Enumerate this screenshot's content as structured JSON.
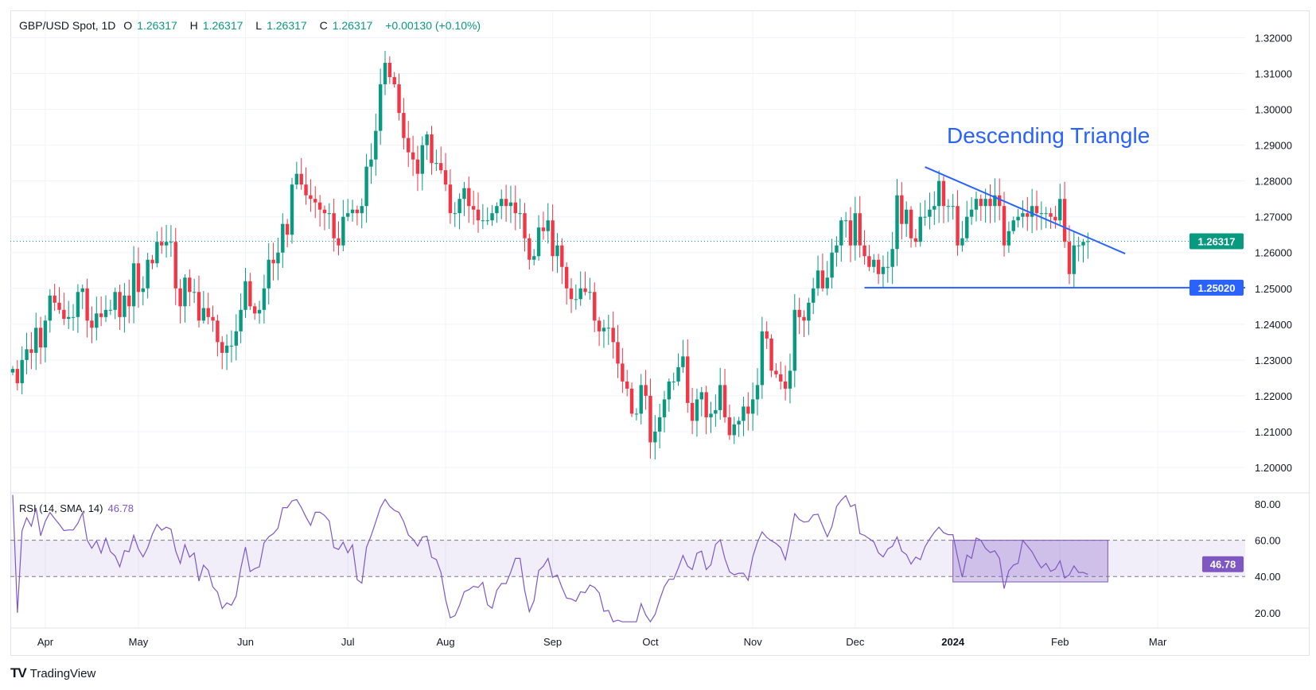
{
  "header": {
    "symbol": "GBP/USD Spot, 1D",
    "open_label": "O",
    "open": "1.26317",
    "high_label": "H",
    "high": "1.26317",
    "low_label": "L",
    "low": "1.26317",
    "close_label": "C",
    "close": "1.26317",
    "change": "+0.00130 (+0.10%)"
  },
  "rsi_legend": {
    "label": "RSI (14, SMA, 14)",
    "value": "46.78"
  },
  "branding": {
    "logo_text": "TradingView"
  },
  "colors": {
    "up": "#089981",
    "down": "#f23645",
    "trendline": "#2962ff",
    "rsi": "#7e57c2",
    "rsi_band": "#7e57c2"
  },
  "chart_data": [
    {
      "type": "candlestick",
      "title": "GBP/USD Spot, 1D",
      "ylim": [
        1.195,
        1.325
      ],
      "y_ticks": [
        "1.32000",
        "1.31000",
        "1.30000",
        "1.29000",
        "1.28000",
        "1.27000",
        "1.26000",
        "1.25000",
        "1.24000",
        "1.23000",
        "1.22000",
        "1.21000",
        "1.20000"
      ],
      "y_tick_values": [
        1.32,
        1.31,
        1.3,
        1.29,
        1.28,
        1.27,
        1.26,
        1.25,
        1.24,
        1.23,
        1.22,
        1.21,
        1.2
      ],
      "x_ticks": [
        {
          "label": "Apr",
          "date": "2023-04-03"
        },
        {
          "label": "May",
          "date": "2023-05-01"
        },
        {
          "label": "Jun",
          "date": "2023-06-01"
        },
        {
          "label": "Jul",
          "date": "2023-07-03"
        },
        {
          "label": "Aug",
          "date": "2023-08-01"
        },
        {
          "label": "Sep",
          "date": "2023-09-01"
        },
        {
          "label": "Oct",
          "date": "2023-10-02"
        },
        {
          "label": "Nov",
          "date": "2023-11-01"
        },
        {
          "label": "Dec",
          "date": "2023-12-01"
        },
        {
          "label": "2024",
          "date": "2024-01-01",
          "bold": true
        },
        {
          "label": "Feb",
          "date": "2024-02-01"
        },
        {
          "label": "Mar",
          "date": "2024-03-01"
        }
      ],
      "grid": true,
      "first_open": 1.2265,
      "weekly_closes": [
        {
          "week": "2023-03-20",
          "close": [
            1.2275,
            1.2235
          ]
        },
        {
          "week": "2023-03-27",
          "close": [
            1.23,
            1.233,
            1.232,
            1.239,
            1.2335
          ]
        },
        {
          "week": "2023-04-03",
          "close": [
            1.241,
            1.248,
            1.246,
            1.244,
            1.2415
          ]
        },
        {
          "week": "2023-04-10",
          "close": [
            1.242,
            1.242,
            1.249,
            1.25,
            1.241
          ]
        },
        {
          "week": "2023-04-17",
          "close": [
            1.239,
            1.243,
            1.242,
            1.244,
            1.244
          ]
        },
        {
          "week": "2023-04-24",
          "close": [
            1.249,
            1.242,
            1.248,
            1.245,
            1.257
          ]
        },
        {
          "week": "2023-05-01",
          "close": [
            1.249,
            1.25,
            1.258,
            1.257,
            1.263
          ]
        },
        {
          "week": "2023-05-08",
          "close": [
            1.262,
            1.263,
            1.263,
            1.25,
            1.245
          ]
        },
        {
          "week": "2023-05-15",
          "close": [
            1.253,
            1.249,
            1.249,
            1.241,
            1.2445
          ]
        },
        {
          "week": "2023-05-22",
          "close": [
            1.242,
            1.241,
            1.235,
            1.232,
            1.234
          ]
        },
        {
          "week": "2023-05-29",
          "close": [
            1.234,
            1.238,
            1.244,
            1.252,
            1.245
          ]
        },
        {
          "week": "2023-06-05",
          "close": [
            1.243,
            1.244,
            1.25,
            1.258,
            1.257
          ]
        },
        {
          "week": "2023-06-12",
          "close": [
            1.26,
            1.268,
            1.265,
            1.279,
            1.282
          ]
        },
        {
          "week": "2023-06-19",
          "close": [
            1.279,
            1.276,
            1.275,
            1.274,
            1.272
          ]
        },
        {
          "week": "2023-06-26",
          "close": [
            1.271,
            1.271,
            1.264,
            1.262,
            1.27
          ]
        },
        {
          "week": "2023-07-03",
          "close": [
            1.271,
            1.272,
            1.271,
            1.273,
            1.284
          ]
        },
        {
          "week": "2023-07-10",
          "close": [
            1.286,
            1.294,
            1.307,
            1.313,
            1.309
          ]
        },
        {
          "week": "2023-07-17",
          "close": [
            1.307,
            1.299,
            1.292,
            1.288,
            1.286
          ]
        },
        {
          "week": "2023-07-24",
          "close": [
            1.282,
            1.29,
            1.293,
            1.285,
            1.285
          ]
        },
        {
          "week": "2023-07-31",
          "close": [
            1.283,
            1.279,
            1.271,
            1.271,
            1.275
          ]
        },
        {
          "week": "2023-08-07",
          "close": [
            1.278,
            1.273,
            1.272,
            1.269,
            1.269
          ]
        },
        {
          "week": "2023-08-14",
          "close": [
            1.269,
            1.271,
            1.273,
            1.275,
            1.273
          ]
        },
        {
          "week": "2023-08-21",
          "close": [
            1.274,
            1.271,
            1.271,
            1.264,
            1.258
          ]
        },
        {
          "week": "2023-08-28",
          "close": [
            1.259,
            1.267,
            1.266,
            1.269,
            1.259
          ]
        },
        {
          "week": "2023-09-04",
          "close": [
            1.262,
            1.256,
            1.25,
            1.247,
            1.247
          ]
        },
        {
          "week": "2023-09-11",
          "close": [
            1.25,
            1.249,
            1.249,
            1.241,
            1.238
          ]
        },
        {
          "week": "2023-09-18",
          "close": [
            1.239,
            1.239,
            1.235,
            1.229,
            1.224
          ]
        },
        {
          "week": "2023-09-25",
          "close": [
            1.222,
            1.215,
            1.215,
            1.223,
            1.22
          ]
        },
        {
          "week": "2023-10-02",
          "close": [
            1.207,
            1.21,
            1.214,
            1.219,
            1.224
          ]
        },
        {
          "week": "2023-10-09",
          "close": [
            1.224,
            1.228,
            1.231,
            1.218,
            1.213
          ]
        },
        {
          "week": "2023-10-16",
          "close": [
            1.219,
            1.221,
            1.214,
            1.215,
            1.216
          ]
        },
        {
          "week": "2023-10-23",
          "close": [
            1.223,
            1.214,
            1.209,
            1.212,
            1.213
          ]
        },
        {
          "week": "2023-10-30",
          "close": [
            1.217,
            1.215,
            1.219,
            1.223,
            1.238
          ]
        },
        {
          "week": "2023-11-06",
          "close": [
            1.236,
            1.227,
            1.226,
            1.224,
            1.222
          ]
        },
        {
          "week": "2023-11-13",
          "close": [
            1.227,
            1.244,
            1.242,
            1.241,
            1.246
          ]
        },
        {
          "week": "2023-11-20",
          "close": [
            1.25,
            1.255,
            1.25,
            1.253,
            1.26
          ]
        },
        {
          "week": "2023-11-27",
          "close": [
            1.262,
            1.269,
            1.269,
            1.262,
            1.271
          ]
        },
        {
          "week": "2023-12-04",
          "close": [
            1.262,
            1.259,
            1.256,
            1.258,
            1.254
          ]
        },
        {
          "week": "2023-12-11",
          "close": [
            1.256,
            1.256,
            1.261,
            1.276,
            1.268
          ]
        },
        {
          "week": "2023-12-18",
          "close": [
            1.272,
            1.264,
            1.263,
            1.27,
            1.27
          ]
        },
        {
          "week": "2023-12-25",
          "close": [
            1.272,
            1.273,
            1.28,
            1.273,
            1.273
          ]
        },
        {
          "week": "2024-01-01",
          "close": [
            1.273,
            1.262,
            1.264,
            1.27,
            1.272
          ]
        },
        {
          "week": "2024-01-08",
          "close": [
            1.275,
            1.273,
            1.275,
            1.273,
            1.276
          ]
        },
        {
          "week": "2024-01-15",
          "close": [
            1.273,
            1.262,
            1.266,
            1.269,
            1.27
          ]
        },
        {
          "week": "2024-01-22",
          "close": [
            1.271,
            1.27,
            1.273,
            1.271,
            1.271
          ]
        },
        {
          "week": "2024-01-29",
          "close": [
            1.271,
            1.27,
            1.269,
            1.275,
            1.263
          ]
        },
        {
          "week": "2024-02-05",
          "close": [
            1.254,
            1.262,
            1.262,
            1.263,
            1.26317
          ]
        }
      ],
      "last_price_label": "1.26317",
      "annotations": {
        "title": "Descending Triangle",
        "upper_trendline": {
          "from": {
            "date": "2023-12-22",
            "price": 1.2839
          },
          "to": {
            "date": "2024-02-21",
            "price": 1.2597
          }
        },
        "support_line": {
          "from_date": "2023-12-05",
          "price": 1.2502,
          "label": "1.25020"
        }
      }
    },
    {
      "type": "line",
      "title": "RSI (14, SMA, 14)",
      "ylim": [
        15,
        85
      ],
      "y_ticks": [
        "80.00",
        "60.00",
        "40.00",
        "20.00"
      ],
      "y_tick_values": [
        80,
        60,
        40,
        20
      ],
      "band": [
        40,
        60
      ],
      "period": 14,
      "last_value_label": "46.78",
      "highlight_box": {
        "from_date": "2024-01-01",
        "to_date": "2024-02-09",
        "low": 37,
        "high": 60
      }
    }
  ]
}
